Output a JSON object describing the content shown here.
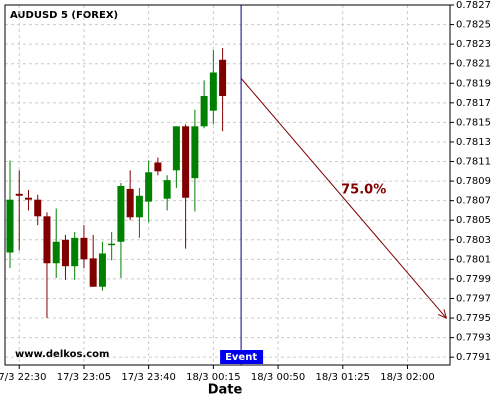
{
  "chart_data": {
    "type": "candlestick",
    "title": "AUDUSD 5 (FOREX)",
    "x_label": "Date",
    "watermark": "www.delkos.com",
    "x": [
      0,
      1,
      2,
      3,
      4,
      5,
      6,
      7,
      8,
      9,
      10,
      11,
      12,
      13,
      14,
      15,
      16,
      17,
      18,
      19,
      20,
      21,
      22,
      23
    ],
    "open": [
      0.78017,
      0.78077,
      0.78073,
      0.78071,
      0.78054,
      0.78006,
      0.7803,
      0.78003,
      0.78032,
      0.78011,
      0.77982,
      0.78025,
      0.78028,
      0.78082,
      0.78053,
      0.78069,
      0.78109,
      0.78072,
      0.78101,
      0.78146,
      0.78093,
      0.78146,
      0.78162,
      0.78214
    ],
    "high": [
      0.78111,
      0.78101,
      0.78081,
      0.78076,
      0.78058,
      0.78062,
      0.78035,
      0.78038,
      0.78045,
      0.78035,
      0.78028,
      0.78038,
      0.78088,
      0.78101,
      0.78083,
      0.78111,
      0.78114,
      0.78096,
      0.78146,
      0.78148,
      0.78163,
      0.78193,
      0.78224,
      0.78226
    ],
    "low": [
      0.78001,
      0.78019,
      0.7806,
      0.78045,
      0.7795,
      0.77991,
      0.77989,
      0.77989,
      0.78001,
      0.77982,
      0.77978,
      0.78009,
      0.77991,
      0.7805,
      0.78032,
      0.78048,
      0.78096,
      0.7806,
      0.78083,
      0.78021,
      0.78059,
      0.78144,
      0.78148,
      0.78141
    ],
    "close": [
      0.78071,
      0.78075,
      0.78071,
      0.78054,
      0.78006,
      0.78028,
      0.78003,
      0.78032,
      0.7801,
      0.77982,
      0.78016,
      0.78026,
      0.78085,
      0.78053,
      0.78075,
      0.78099,
      0.781,
      0.78091,
      0.78146,
      0.78073,
      0.78146,
      0.78177,
      0.78201,
      0.78177
    ],
    "up_color": "#008000",
    "down_color": "#800000",
    "xlim": [
      -0.54,
      47.6
    ],
    "xticks": [
      {
        "value": 1,
        "label": "17/3 22:30"
      },
      {
        "value": 8,
        "label": "17/3 23:05"
      },
      {
        "value": 15,
        "label": "17/3 23:40"
      },
      {
        "value": 22,
        "label": "18/3 00:15"
      },
      {
        "value": 29,
        "label": "18/3 00:50"
      },
      {
        "value": 36,
        "label": "18/3 01:25"
      },
      {
        "value": 43,
        "label": "18/3 02:00"
      }
    ],
    "ylim": [
      0.77902,
      0.7827
    ],
    "yticks": [
      0.7791,
      0.7793,
      0.7795,
      0.7797,
      0.7799,
      0.7801,
      0.7803,
      0.7805,
      0.7807,
      0.7809,
      0.7811,
      0.7813,
      0.7815,
      0.7817,
      0.7819,
      0.7821,
      0.7823,
      0.7825,
      0.7827
    ],
    "grid": true,
    "event": {
      "label": "Event",
      "x": 25,
      "color": "#00008b"
    },
    "annotation": {
      "text": "75.0%",
      "x_start": 25,
      "y_start": 0.78195,
      "x_end": 47.2,
      "y_end": 0.7795,
      "color": "#800000"
    }
  }
}
